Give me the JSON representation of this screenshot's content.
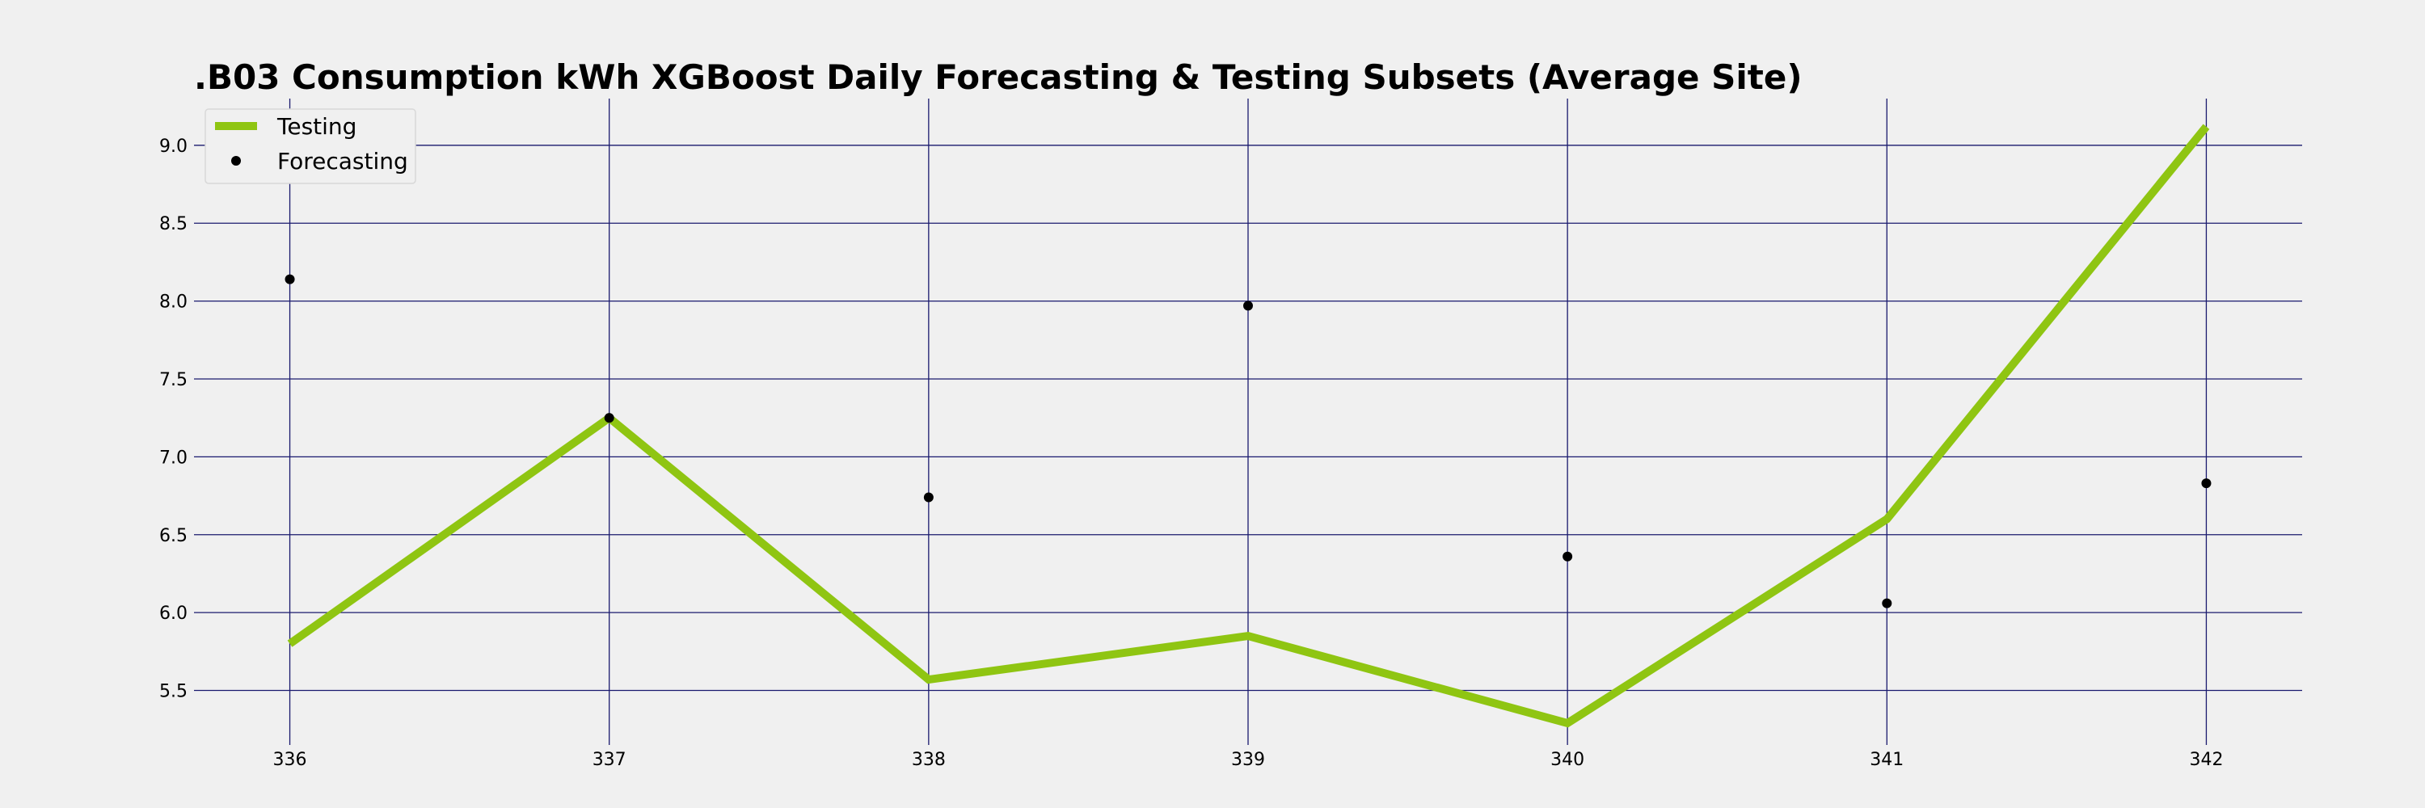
{
  "chart_data": {
    "type": "line",
    "title": ".B03 Consumption kWh XGBoost Daily Forecasting & Testing Subsets (Average Site)",
    "xlabel": "",
    "ylabel": "",
    "x": [
      336,
      337,
      338,
      339,
      340,
      341,
      342
    ],
    "xlim": [
      335.7,
      342.3
    ],
    "ylim": [
      5.15,
      9.3
    ],
    "x_ticks": [
      336,
      337,
      338,
      339,
      340,
      341,
      342
    ],
    "y_ticks": [
      5.5,
      6.0,
      6.5,
      7.0,
      7.5,
      8.0,
      8.5,
      9.0
    ],
    "grid": true,
    "grid_color": "#1a1a6e",
    "background": "#f0f0f0",
    "legend_position": "top-left",
    "series": [
      {
        "name": "Testing",
        "style": "line",
        "color": "#8fc512",
        "values": [
          5.8,
          7.25,
          5.57,
          5.85,
          5.29,
          6.6,
          9.12
        ]
      },
      {
        "name": "Forecasting",
        "style": "markers",
        "color": "#000000",
        "values": [
          8.14,
          7.25,
          6.74,
          7.97,
          6.36,
          6.06,
          6.83
        ]
      }
    ]
  }
}
